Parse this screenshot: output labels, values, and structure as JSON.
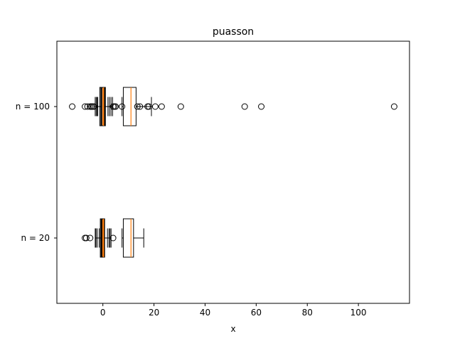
{
  "chart_data": {
    "type": "boxplot",
    "orientation": "horizontal",
    "title": "puasson",
    "xlabel": "x",
    "ylabel": "",
    "xlim": [
      -18,
      120
    ],
    "xticks": [
      0,
      20,
      40,
      60,
      80,
      100
    ],
    "grid": false,
    "legend": false,
    "colors": {
      "median": "#ff7f0e",
      "box": "#000000",
      "background": "#ffffff"
    },
    "groups": [
      {
        "label": "n = 100",
        "boxes": [
          {
            "q1": 8,
            "median": 11,
            "q3": 13,
            "whisker_low": 7.5,
            "whisker_high": 19,
            "fliers": [
              13.5,
              14.5,
              17.5,
              18,
              20.5,
              23,
              30.5,
              55.5,
              62,
              114
            ]
          },
          {
            "q1": -1.2,
            "median": 0.1,
            "q3": 1,
            "whisker_low": -2,
            "whisker_high": 2,
            "fliers": [
              -12,
              -7,
              -6,
              -5,
              -4.5,
              -4,
              -3.5,
              4,
              4.5,
              5,
              7.5
            ]
          },
          {
            "q1": -0.8,
            "median": 0.4,
            "q3": 0.8,
            "whisker_low": -2.6,
            "whisker_high": 3.8,
            "fliers": []
          },
          {
            "q1": -0.4,
            "median": 0,
            "q3": 0.9,
            "whisker_low": -2.2,
            "whisker_high": 3.2,
            "fliers": []
          },
          {
            "q1": -0.6,
            "median": 0.3,
            "q3": 0.5,
            "whisker_low": -3.0,
            "whisker_high": 2.6,
            "fliers": []
          }
        ]
      },
      {
        "label": "n = 20",
        "boxes": [
          {
            "q1": 8,
            "median": 11,
            "q3": 12,
            "whisker_low": 7.5,
            "whisker_high": 16,
            "fliers": []
          },
          {
            "q1": -1,
            "median": -0.2,
            "q3": 0.6,
            "whisker_low": -2.2,
            "whisker_high": 1.8,
            "fliers": [
              -7,
              -6.5,
              -5,
              4
            ]
          },
          {
            "q1": -0.7,
            "median": 0.2,
            "q3": 0.6,
            "whisker_low": -2.7,
            "whisker_high": 3.2,
            "fliers": []
          },
          {
            "q1": -0.3,
            "median": 0,
            "q3": 0.7,
            "whisker_low": -1.4,
            "whisker_high": 2.4,
            "fliers": []
          },
          {
            "q1": -0.5,
            "median": 0.3,
            "q3": 0.4,
            "whisker_low": -3.0,
            "whisker_high": 2.8,
            "fliers": []
          }
        ]
      }
    ]
  }
}
